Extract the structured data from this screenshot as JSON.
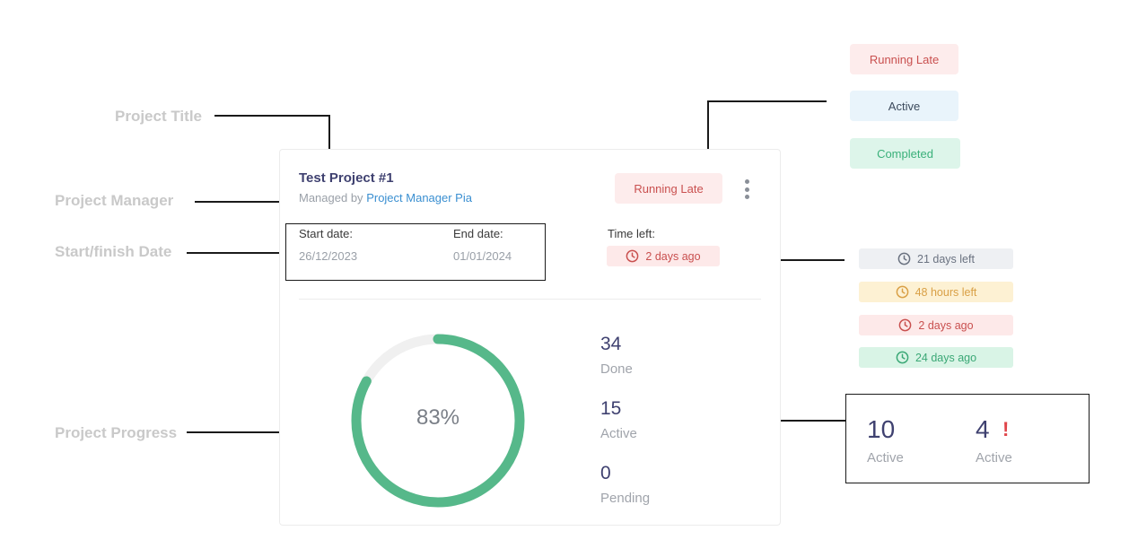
{
  "annotations": {
    "project_title": "Project Title",
    "project_manager": "Project Manager",
    "start_finish_date": "Start/finish Date",
    "project_progress": "Project  Progress"
  },
  "status_legend": [
    {
      "label": "Running Late",
      "color": "#c9504f"
    },
    {
      "label": "Active",
      "color": "#3c4a5c"
    },
    {
      "label": "Completed",
      "color": "#3ab07a"
    }
  ],
  "time_legend": [
    {
      "label": "21 days left",
      "icon": "clock-icon",
      "color": "#6a7280"
    },
    {
      "label": "48 hours left",
      "icon": "clock-icon",
      "color": "#d9a046"
    },
    {
      "label": "2 days ago",
      "icon": "clock-icon",
      "color": "#c9504f"
    },
    {
      "label": "24 days ago",
      "icon": "clock-icon",
      "color": "#3ba876"
    }
  ],
  "card": {
    "title": "Test Project #1",
    "managed_prefix": "Managed by",
    "manager": "Project Manager Pia",
    "status": "Running Late",
    "start_label": "Start date:",
    "start_value": "26/12/2023",
    "end_label": "End date:",
    "end_value": "01/01/2024",
    "time_left_label": "Time left:",
    "time_left_value": "2 days ago",
    "progress_percent": 83,
    "progress_text": "83%",
    "progress_color": "#56b88a",
    "stats": [
      {
        "value": "34",
        "label": "Done"
      },
      {
        "value": "15",
        "label": "Active"
      },
      {
        "value": "0",
        "label": "Pending"
      }
    ]
  },
  "summary": {
    "left_value": "10",
    "left_label": "Active",
    "right_value": "4",
    "right_label": "Active",
    "alert_mark": "!"
  }
}
